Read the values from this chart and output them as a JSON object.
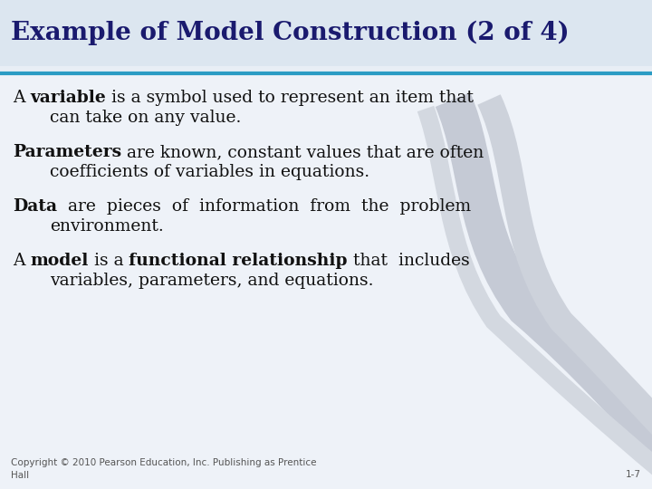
{
  "title": "Example of Model Construction (2 of 4)",
  "title_bg": "#dce6f0",
  "title_color": "#1a1a6e",
  "title_fontsize": 20,
  "slide_bg": "#e8eef5",
  "body_bg": "#eef2f8",
  "separator_color": "#2b9cc4",
  "copyright": "Copyright © 2010 Pearson Education, Inc. Publishing as Prentice\nHall",
  "page_num": "1-7",
  "footer_fontsize": 7.5,
  "text_color": "#111111",
  "text_fontsize": 13.5,
  "curve_colors": [
    "#c5cad5",
    "#cdd2db",
    "#d3d8e0"
  ],
  "curve_lw": [
    30,
    20,
    14
  ]
}
